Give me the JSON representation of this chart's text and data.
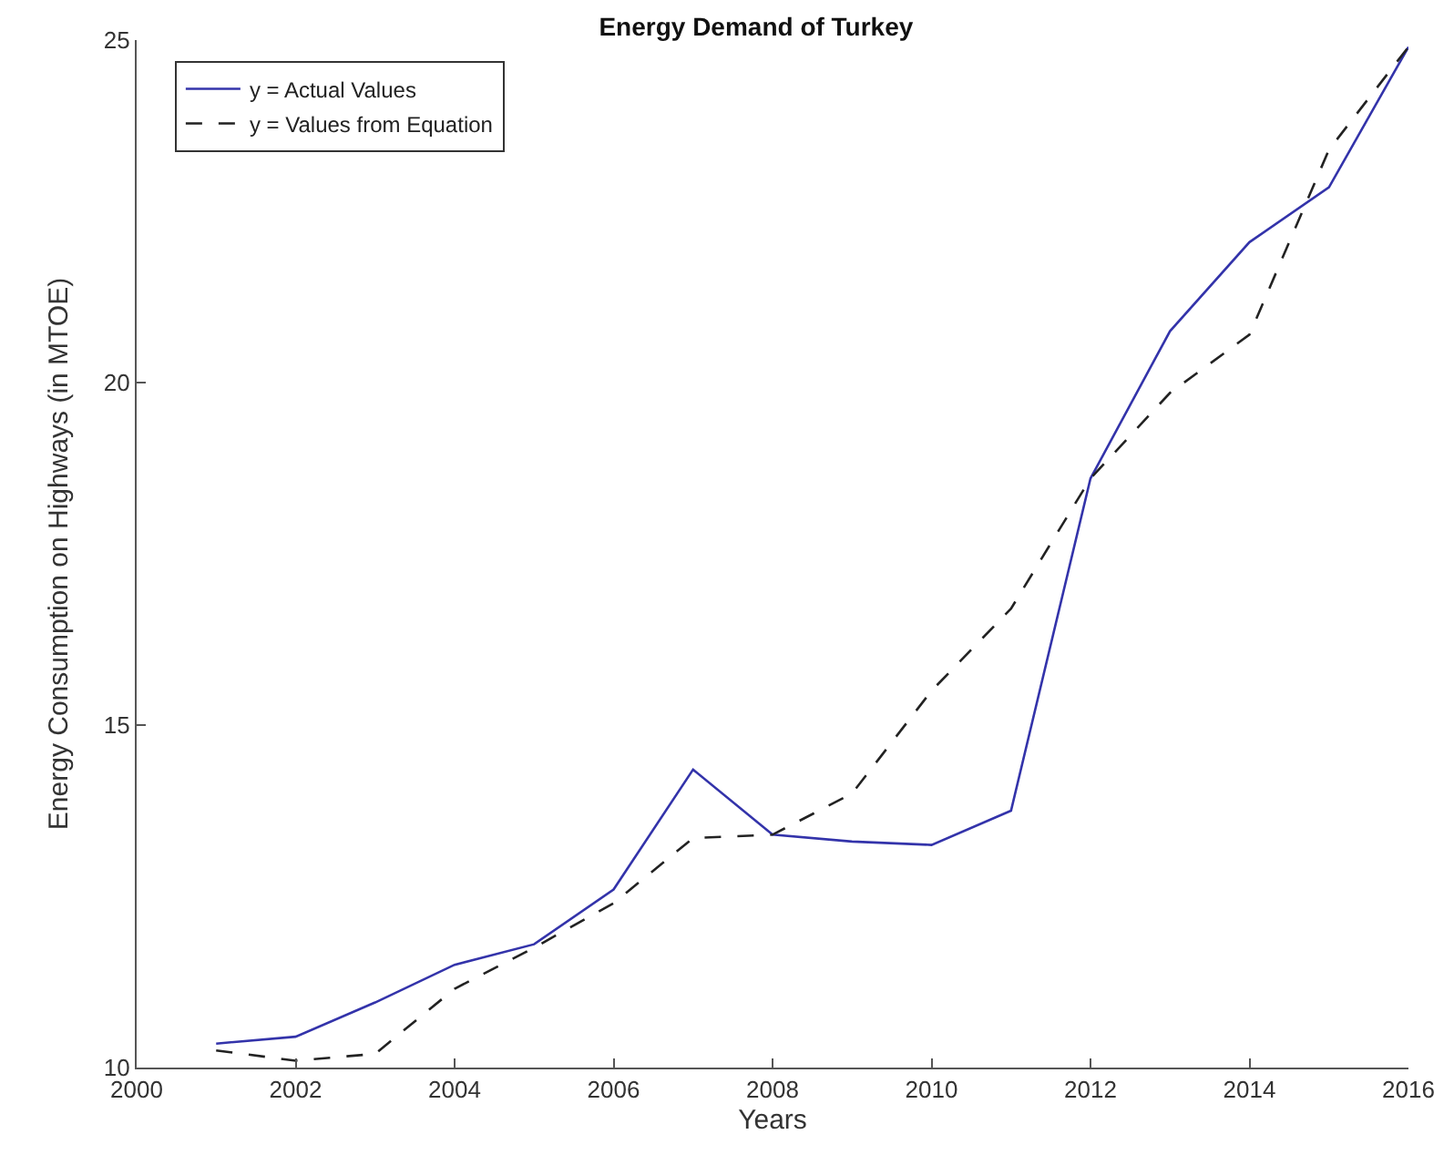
{
  "chart_data": {
    "type": "line",
    "title": "Energy Demand of Turkey",
    "xlabel": "Years",
    "ylabel": "Energy Consumption on Highways (in MTOE)",
    "x": [
      2001,
      2002,
      2003,
      2004,
      2005,
      2006,
      2007,
      2008,
      2009,
      2010,
      2011,
      2012,
      2013,
      2014,
      2015,
      2016
    ],
    "series": [
      {
        "name": "y = Actual Values",
        "color": "#3333aa",
        "line_style": "solid",
        "values": [
          10.35,
          10.45,
          10.95,
          11.5,
          11.8,
          12.6,
          14.35,
          13.4,
          13.3,
          13.25,
          13.75,
          18.6,
          20.75,
          22.05,
          22.85,
          24.9
        ]
      },
      {
        "name": "y = Values from Equation",
        "color": "#222222",
        "line_style": "dashed",
        "values": [
          10.25,
          10.1,
          10.2,
          11.15,
          11.75,
          12.4,
          13.35,
          13.4,
          14.0,
          15.5,
          16.7,
          18.6,
          19.85,
          20.7,
          23.4,
          24.9
        ]
      }
    ],
    "xlim": [
      2000,
      2016
    ],
    "xticks": [
      2000,
      2002,
      2004,
      2006,
      2008,
      2010,
      2012,
      2014,
      2016
    ],
    "ylim": [
      10,
      25
    ],
    "yticks": [
      10,
      15,
      20,
      25
    ],
    "legend": "top left",
    "marker": "none"
  }
}
